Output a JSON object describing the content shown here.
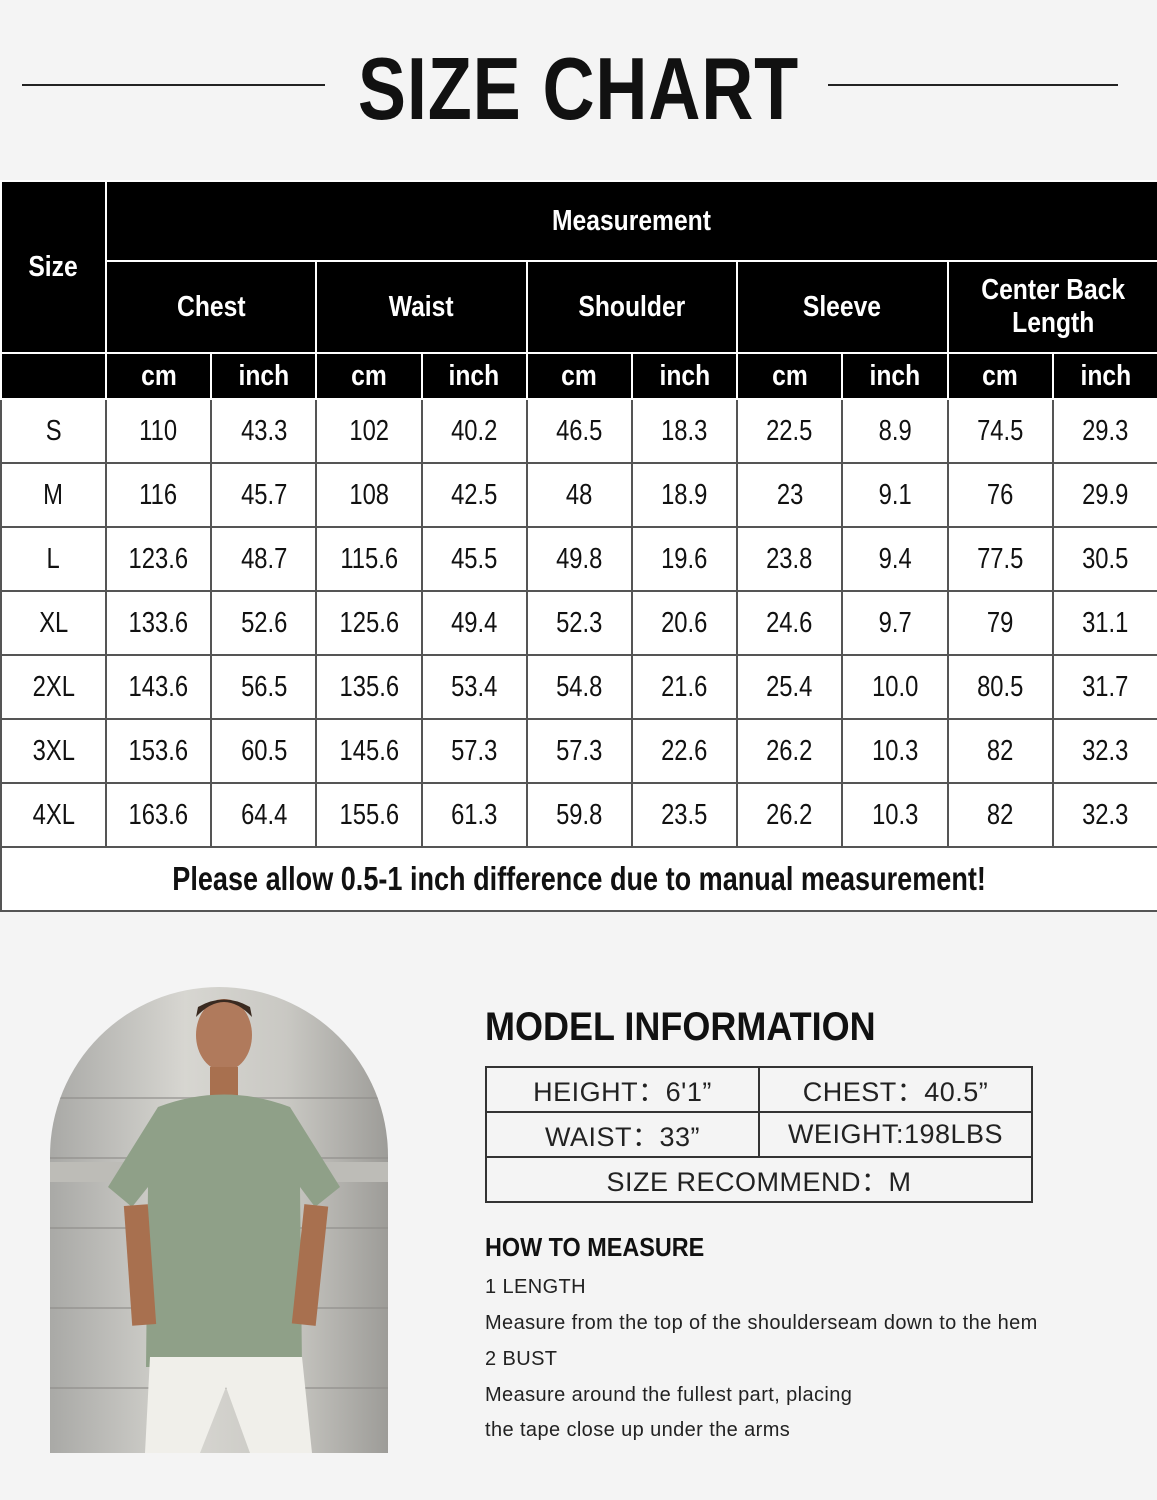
{
  "title": "SIZE CHART",
  "size_table": {
    "size_header": "Size",
    "measurement_header": "Measurement",
    "groups": [
      "Chest",
      "Waist",
      "Shoulder",
      "Sleeve",
      "Center Back Length"
    ],
    "units": [
      "cm",
      "inch"
    ],
    "rows": [
      {
        "size": "S",
        "values": [
          "110",
          "43.3",
          "102",
          "40.2",
          "46.5",
          "18.3",
          "22.5",
          "8.9",
          "74.5",
          "29.3"
        ]
      },
      {
        "size": "M",
        "values": [
          "116",
          "45.7",
          "108",
          "42.5",
          "48",
          "18.9",
          "23",
          "9.1",
          "76",
          "29.9"
        ]
      },
      {
        "size": "L",
        "values": [
          "123.6",
          "48.7",
          "115.6",
          "45.5",
          "49.8",
          "19.6",
          "23.8",
          "9.4",
          "77.5",
          "30.5"
        ]
      },
      {
        "size": "XL",
        "values": [
          "133.6",
          "52.6",
          "125.6",
          "49.4",
          "52.3",
          "20.6",
          "24.6",
          "9.7",
          "79",
          "31.1"
        ]
      },
      {
        "size": "2XL",
        "values": [
          "143.6",
          "56.5",
          "135.6",
          "53.4",
          "54.8",
          "21.6",
          "25.4",
          "10.0",
          "80.5",
          "31.7"
        ]
      },
      {
        "size": "3XL",
        "values": [
          "153.6",
          "60.5",
          "145.6",
          "57.3",
          "57.3",
          "22.6",
          "26.2",
          "10.3",
          "82",
          "32.3"
        ]
      },
      {
        "size": "4XL",
        "values": [
          "163.6",
          "64.4",
          "155.6",
          "61.3",
          "59.8",
          "23.5",
          "26.2",
          "10.3",
          "82",
          "32.3"
        ]
      }
    ],
    "note": "Please allow 0.5-1 inch difference due to manual measurement!"
  },
  "model_info": {
    "title": "MODEL INFORMATION",
    "height": "HEIGHT：6'1”",
    "chest": "CHEST：40.5”",
    "waist": "WAIST：33”",
    "weight": "WEIGHT:198LBS",
    "size_recommend": "SIZE RECOMMEND：M",
    "shirt_color": "#8fa088"
  },
  "how_to_measure": {
    "title": "HOW TO MEASURE",
    "items": [
      {
        "label": "1 LENGTH",
        "lines": [
          "Measure from the top of the shoulderseam down to the hem"
        ]
      },
      {
        "label": "2 BUST",
        "lines": [
          "Measure around the fullest part, placing",
          "the tape close up under the arms"
        ]
      }
    ]
  }
}
